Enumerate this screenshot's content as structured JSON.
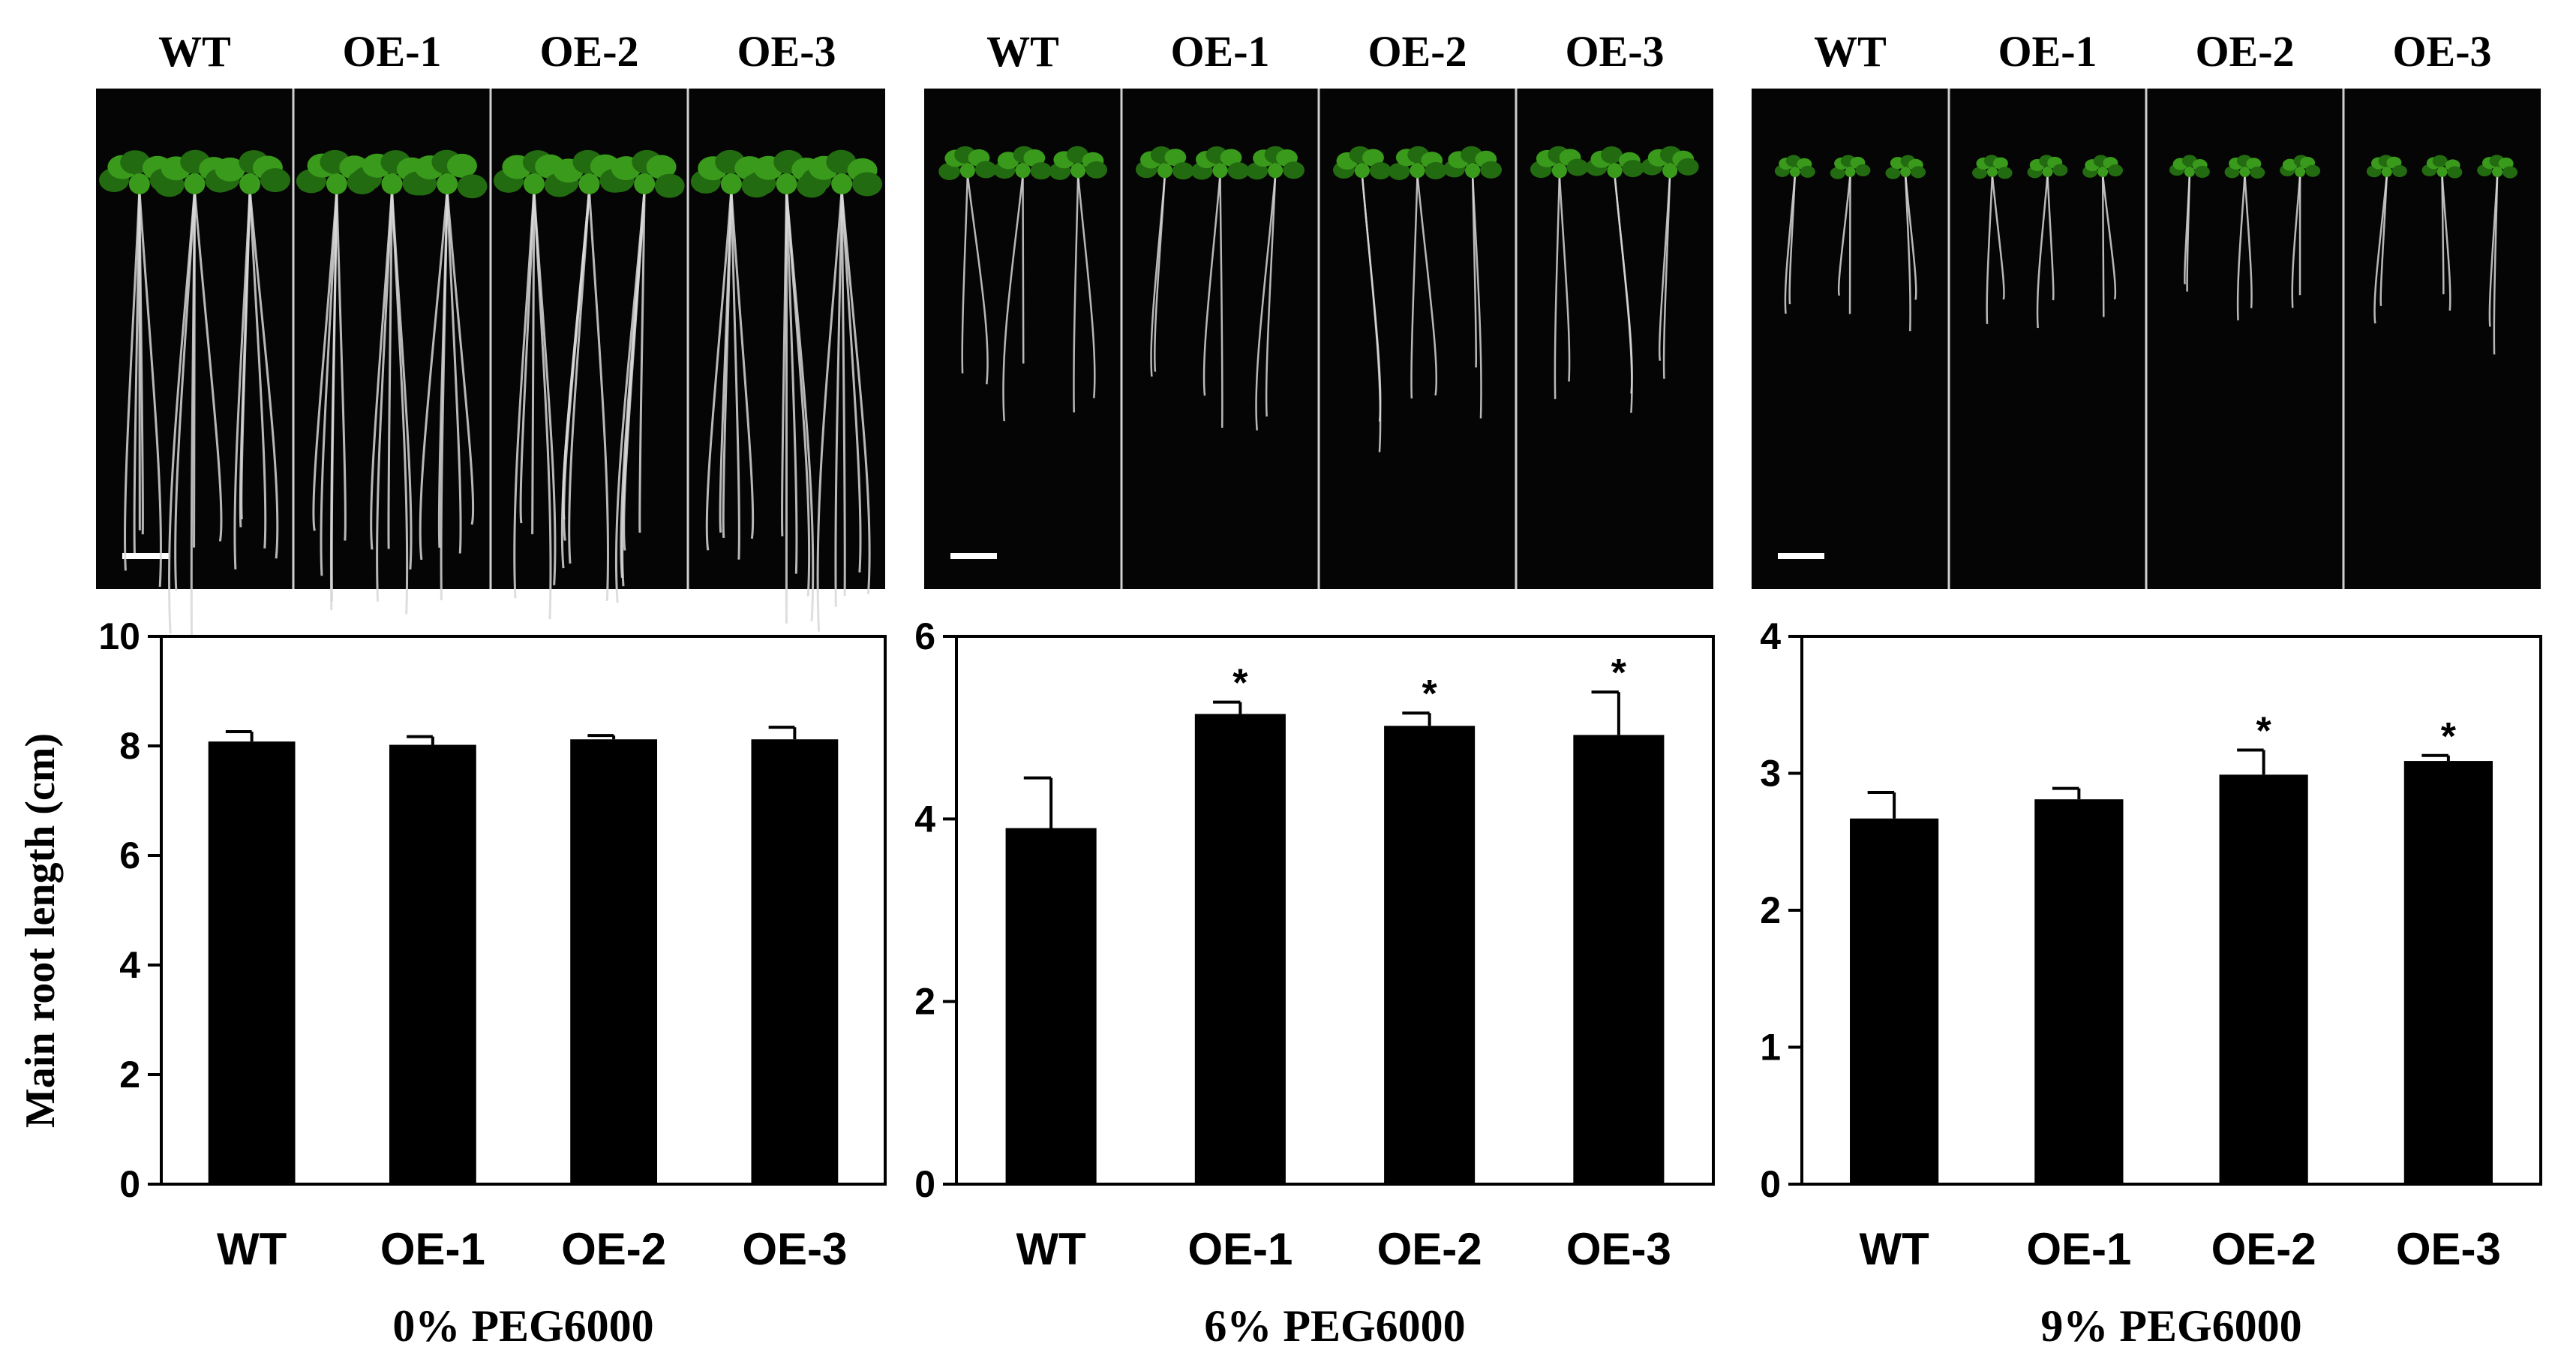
{
  "figure": {
    "ylabel": "Main root length (cm)",
    "photo_labels": [
      "WT",
      "OE-1",
      "OE-2",
      "OE-3"
    ],
    "colors": {
      "bar": "#000000",
      "photo_bg": "#050505",
      "leaf": "#3a9a1c",
      "leaf_dark": "#236b10",
      "root": "#d8d8d8",
      "divider": "#d0d0d0"
    }
  },
  "chart_data": [
    {
      "type": "bar",
      "title": "",
      "xlabel": "0% PEG6000",
      "ylabel": "Main root length (cm)",
      "categories": [
        "WT",
        "OE-1",
        "OE-2",
        "OE-3"
      ],
      "values": [
        8.08,
        8.02,
        8.12,
        8.12
      ],
      "errors": [
        0.18,
        0.15,
        0.07,
        0.22
      ],
      "significance": [
        "",
        "",
        "",
        ""
      ],
      "ylim": [
        0,
        10
      ],
      "yticks": [
        "0",
        "2",
        "4",
        "6",
        "8",
        "10"
      ]
    },
    {
      "type": "bar",
      "title": "",
      "xlabel": "6% PEG6000",
      "ylabel": "",
      "categories": [
        "WT",
        "OE-1",
        "OE-2",
        "OE-3"
      ],
      "values": [
        3.9,
        5.15,
        5.02,
        4.92
      ],
      "errors": [
        0.55,
        0.13,
        0.14,
        0.47
      ],
      "significance": [
        "",
        "*",
        "*",
        "*"
      ],
      "ylim": [
        0,
        6
      ],
      "yticks": [
        "0",
        "2",
        "4",
        "6"
      ]
    },
    {
      "type": "bar",
      "title": "",
      "xlabel": "9% PEG6000",
      "ylabel": "",
      "categories": [
        "WT",
        "OE-1",
        "OE-2",
        "OE-3"
      ],
      "values": [
        2.67,
        2.81,
        2.99,
        3.09
      ],
      "errors": [
        0.19,
        0.08,
        0.18,
        0.04
      ],
      "significance": [
        "",
        "",
        "*",
        "*"
      ],
      "ylim": [
        0,
        4
      ],
      "yticks": [
        "0",
        "1",
        "2",
        "3",
        "4"
      ]
    }
  ]
}
